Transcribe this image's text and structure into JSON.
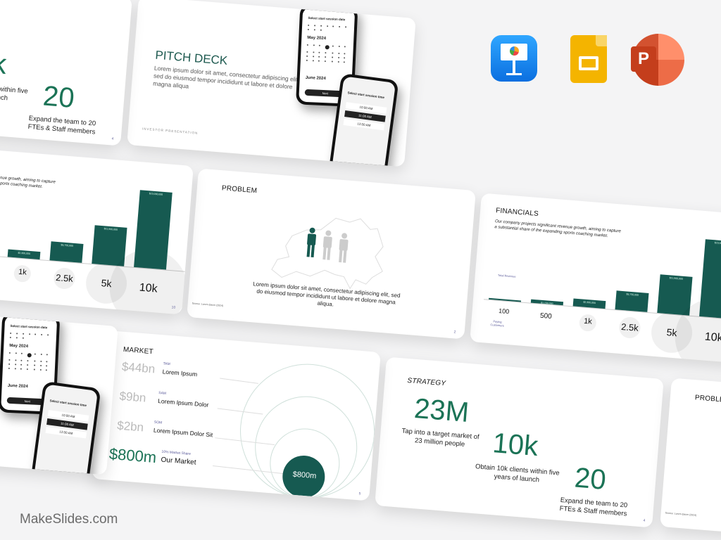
{
  "brand": "MakeSlides.com",
  "apps": [
    {
      "name": "Keynote",
      "color": "#1a8cf0"
    },
    {
      "name": "Google Slides",
      "color": "#f4b400"
    },
    {
      "name": "PowerPoint",
      "color": "#d24726"
    }
  ],
  "accent": "#1b7356",
  "bar_color": "#165a51",
  "strategy": {
    "title": "STRATEGY",
    "stats": [
      {
        "value": "23M",
        "text": "Tap into a target market of 23 million people"
      },
      {
        "value": "10k",
        "text": "Obtain 10k clients within five years of launch"
      },
      {
        "value": "20",
        "text": "Expand the team to 20 FTEs & Staff members"
      }
    ],
    "page": "4"
  },
  "pitch": {
    "title": "PITCH DECK",
    "body": "Lorem ipsum dolor sit amet, consectetur adipiscing elit, sed do eiusmod tempor incididunt ut labore et dolore magna aliqua",
    "footer": "INVESTOR PRESENTATION",
    "phone1": {
      "heading": "Select start session date",
      "month1": "May 2024",
      "month2": "June 2024",
      "button": "Next"
    },
    "phone2": {
      "heading": "Select start session time",
      "slots": [
        "10:00 AM",
        "11:00 AM",
        "12:00 AM"
      ]
    }
  },
  "financials": {
    "title": "FINANCIALS",
    "desc": "Our company projects significant revenue growth, aiming to capture a substantial share of the expanding sports coaching market.",
    "revenue_label": "Total Revenue",
    "customers_label": "Paying Customers",
    "customers": [
      "100",
      "500",
      "1k",
      "2.5k",
      "5k",
      "10k"
    ],
    "revenue": [
      null,
      1150000,
      2300000,
      5750000,
      11500000,
      23000000
    ],
    "revenue_labels": [
      "",
      "$1,150,000",
      "$2,300,000",
      "$5,750,000",
      "$11,500,000",
      "$23,000,000"
    ],
    "page": "10"
  },
  "problem": {
    "title": "PROBLEM",
    "body": "Lorem ipsum dolor sit amet, consectetur adipiscing elit, sed do eiusmod tempor incididunt ut labore et dolore magna aliqua.",
    "source": "Source: Lorem Ipsum (2024)",
    "page": "2"
  },
  "market": {
    "title": "MARKET",
    "rows": [
      {
        "value": "$44bn",
        "label": "TAM",
        "name": "Lorem Ipsum"
      },
      {
        "value": "$9bn",
        "label": "SAM",
        "name": "Lorem Ipsum Dolor"
      },
      {
        "value": "$2bn",
        "label": "SOM",
        "name": "Lorem Ipsum Dolor Sit"
      },
      {
        "value": "$800m",
        "label": "10% Market Share",
        "name": "Our Market"
      }
    ],
    "circle_value": "$800m",
    "page": "5"
  }
}
